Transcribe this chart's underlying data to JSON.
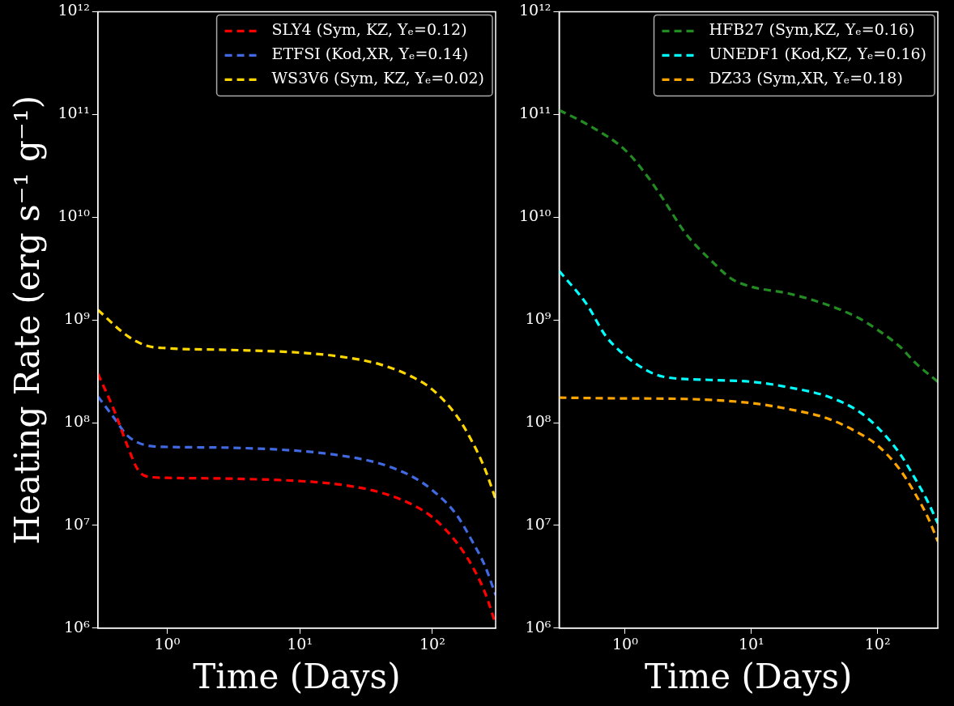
{
  "chart_data": [
    {
      "type": "line",
      "xlabel": "Time (Days)",
      "ylabel": "Heating Rate (erg s⁻¹ g⁻¹)",
      "log": "xy",
      "legend": "top right",
      "line_style": "dashed",
      "marker": "none",
      "xlim": [
        0.3,
        300
      ],
      "xticks": [
        {
          "value": 1,
          "label": "10⁰"
        },
        {
          "value": 10,
          "label": "10¹"
        },
        {
          "value": 100,
          "label": "10²"
        }
      ],
      "ylim": [
        1000000,
        1000000000000
      ],
      "yticks": [
        {
          "value": 1000000,
          "label": "10⁶"
        },
        {
          "value": 10000000,
          "label": "10⁷"
        },
        {
          "value": 100000000,
          "label": "10⁸"
        },
        {
          "value": 1000000000,
          "label": "10⁹"
        },
        {
          "value": 10000000000,
          "label": "10¹⁰"
        },
        {
          "value": 100000000000,
          "label": "10¹¹"
        },
        {
          "value": 1000000000000,
          "label": "10¹²"
        }
      ],
      "series": [
        {
          "name": "SLY4 (Sym, KZ, Yₑ=0.12)",
          "color": "#ff0000",
          "x": [
            0.3,
            0.4,
            0.5,
            0.6,
            0.7,
            1,
            3,
            10,
            20,
            40,
            70,
            100,
            150,
            200,
            250,
            300
          ],
          "values": [
            300000000,
            130000000,
            60000000,
            35000000,
            30000000,
            29000000,
            28500000,
            27000000,
            25000000,
            21000000,
            16000000,
            12000000,
            7000000,
            4000000,
            2200000,
            1100000
          ]
        },
        {
          "name": "ETFSI (Kod,XR, Yₑ=0.14)",
          "color": "#4169e1",
          "x": [
            0.3,
            0.4,
            0.5,
            0.7,
            1,
            3,
            10,
            20,
            40,
            70,
            100,
            150,
            200,
            250,
            300
          ],
          "values": [
            180000000,
            110000000,
            75000000,
            60000000,
            58000000,
            57000000,
            53000000,
            48000000,
            40000000,
            30000000,
            22000000,
            13000000,
            7000000,
            4000000,
            2100000
          ]
        },
        {
          "name": "WS3V6 (Sym, KZ, Yₑ=0.02)",
          "color": "#ffd700",
          "x": [
            0.3,
            0.5,
            0.7,
            1,
            3,
            10,
            20,
            40,
            70,
            100,
            150,
            200,
            250,
            300
          ],
          "values": [
            1250000000,
            700000000,
            560000000,
            530000000,
            510000000,
            480000000,
            440000000,
            370000000,
            280000000,
            210000000,
            120000000,
            65000000,
            35000000,
            18000000
          ]
        }
      ]
    },
    {
      "type": "line",
      "xlabel": "Time (Days)",
      "log": "xy",
      "legend": "top right",
      "line_style": "dashed",
      "marker": "none",
      "xlim": [
        0.3,
        300
      ],
      "xticks": [
        {
          "value": 1,
          "label": "10⁰"
        },
        {
          "value": 10,
          "label": "10¹"
        },
        {
          "value": 100,
          "label": "10²"
        }
      ],
      "ylim": [
        1000000,
        1000000000000
      ],
      "yticks": [
        {
          "value": 1000000,
          "label": "10⁶"
        },
        {
          "value": 10000000,
          "label": "10⁷"
        },
        {
          "value": 100000000,
          "label": "10⁸"
        },
        {
          "value": 1000000000,
          "label": "10⁹"
        },
        {
          "value": 10000000000,
          "label": "10¹⁰"
        },
        {
          "value": 100000000000,
          "label": "10¹¹"
        },
        {
          "value": 1000000000000,
          "label": "10¹²"
        }
      ],
      "series": [
        {
          "name": "HFB27 (Sym,KZ, Yₑ=0.16)",
          "color": "#228b22",
          "x": [
            0.3,
            0.5,
            1,
            1.5,
            2,
            3,
            5,
            7,
            10,
            20,
            40,
            70,
            100,
            150,
            200,
            300
          ],
          "values": [
            110000000000,
            80000000000,
            45000000000,
            25000000000,
            15000000000,
            7000000000,
            3600000000,
            2500000000,
            2100000000,
            1800000000,
            1400000000,
            1050000000,
            800000000,
            550000000,
            380000000,
            250000000
          ]
        },
        {
          "name": "UNEDF1 (Kod,KZ, Yₑ=0.16)",
          "color": "#00ffff",
          "x": [
            0.3,
            0.5,
            0.7,
            1,
            1.5,
            2,
            5,
            10,
            20,
            40,
            70,
            100,
            150,
            200,
            250,
            300
          ],
          "values": [
            3000000000,
            1400000000,
            700000000,
            450000000,
            320000000,
            280000000,
            260000000,
            250000000,
            220000000,
            180000000,
            130000000,
            90000000,
            50000000,
            28000000,
            17000000,
            10500000
          ]
        },
        {
          "name": "DZ33 (Sym,XR, Yₑ=0.18)",
          "color": "#ffa500",
          "x": [
            0.3,
            1,
            3,
            10,
            20,
            40,
            70,
            100,
            150,
            200,
            250,
            300
          ],
          "values": [
            175000000,
            172000000,
            170000000,
            155000000,
            135000000,
            110000000,
            80000000,
            60000000,
            35000000,
            20000000,
            12000000,
            7000000
          ]
        }
      ]
    }
  ]
}
